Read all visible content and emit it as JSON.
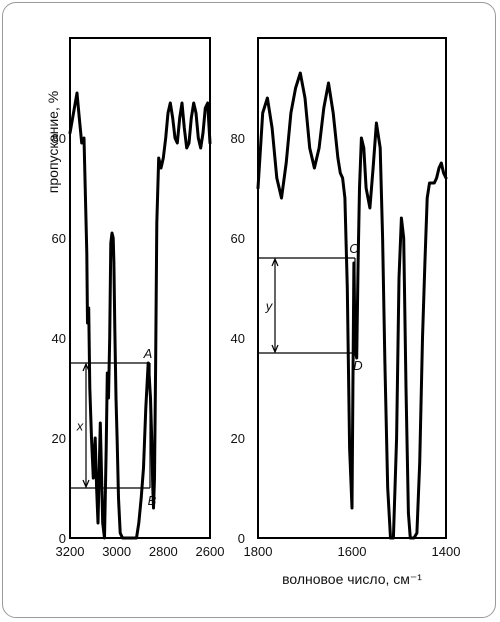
{
  "chart_data": [
    {
      "type": "line",
      "panel": "left",
      "x_reversed": true,
      "xlim": [
        3200,
        2600
      ],
      "ylim": [
        0,
        100
      ],
      "x_ticks": [
        3200,
        3000,
        2800,
        2600
      ],
      "x_tick_labels": [
        "3200",
        "3000",
        "2800",
        "2600"
      ],
      "y_ticks": [
        0,
        20,
        40,
        60,
        80
      ],
      "y_tick_labels": [
        "0",
        "20",
        "40",
        "60",
        "80"
      ],
      "ylabel": "пропускание, %",
      "series": [
        {
          "x": [
            3200,
            3185,
            3170,
            3160,
            3150,
            3140,
            3128,
            3125,
            3120,
            3115,
            3108,
            3100,
            3092,
            3086,
            3080,
            3070,
            3060,
            3052,
            3045,
            3040,
            3035,
            3030,
            3025,
            3020,
            3015,
            3012,
            3008,
            3003,
            2998,
            2992,
            2985,
            2975,
            2965,
            2955,
            2945,
            2935,
            2925,
            2915,
            2905,
            2895,
            2885,
            2875,
            2865,
            2860,
            2855,
            2850,
            2845,
            2842,
            2838,
            2833,
            2828,
            2820,
            2810,
            2800,
            2790,
            2780,
            2770,
            2760,
            2750,
            2740,
            2730,
            2720,
            2710,
            2700,
            2690,
            2680,
            2670,
            2660,
            2650,
            2640,
            2630,
            2620,
            2610,
            2605,
            2600
          ],
          "y": [
            81,
            85,
            89,
            84,
            79,
            80,
            57,
            43,
            46,
            30,
            20,
            12,
            20,
            10,
            3,
            23,
            3,
            0,
            18,
            33,
            28,
            40,
            59,
            61,
            60,
            55,
            42,
            28,
            20,
            8,
            1,
            0,
            0,
            0,
            0,
            0,
            0,
            0,
            3,
            8,
            14,
            26,
            35,
            32,
            28,
            20,
            10,
            6,
            12,
            34,
            63,
            76,
            74,
            76,
            80,
            85,
            87,
            84,
            80,
            79,
            84,
            87,
            82,
            78,
            79,
            84,
            87,
            85,
            80,
            78,
            81,
            86,
            87,
            83,
            79
          ]
        }
      ],
      "annotations": [
        {
          "label": "A",
          "y": 35
        },
        {
          "label": "B",
          "y": 10
        },
        {
          "label": "x",
          "from_y": 10,
          "to_y": 35,
          "at_x": 3110
        }
      ]
    },
    {
      "type": "line",
      "panel": "right",
      "x_reversed": true,
      "xlim": [
        1800,
        1400
      ],
      "ylim": [
        0,
        100
      ],
      "x_ticks": [
        1800,
        1600,
        1400
      ],
      "x_tick_labels": [
        "1800",
        "1600",
        "1400"
      ],
      "y_ticks": [
        0,
        20,
        40,
        60,
        80
      ],
      "y_tick_labels": [
        "0",
        "20",
        "40",
        "60",
        "80"
      ],
      "xlabel": "волновое число, см⁻¹",
      "series": [
        {
          "x": [
            1800,
            1790,
            1780,
            1770,
            1760,
            1750,
            1740,
            1730,
            1720,
            1710,
            1700,
            1690,
            1680,
            1670,
            1660,
            1650,
            1640,
            1630,
            1625,
            1620,
            1615,
            1610,
            1605,
            1600,
            1598,
            1596,
            1594,
            1592,
            1590,
            1587,
            1584,
            1580,
            1575,
            1570,
            1562,
            1555,
            1548,
            1540,
            1535,
            1530,
            1524,
            1518,
            1512,
            1505,
            1500,
            1495,
            1490,
            1485,
            1480,
            1476,
            1472,
            1468,
            1462,
            1456,
            1450,
            1445,
            1440,
            1435,
            1430,
            1425,
            1420,
            1415,
            1410,
            1405,
            1400
          ],
          "y": [
            70,
            85,
            88,
            82,
            72,
            68,
            75,
            85,
            90,
            93,
            88,
            78,
            74,
            78,
            86,
            91,
            85,
            76,
            73,
            72,
            68,
            50,
            18,
            6,
            30,
            55,
            42,
            37,
            36,
            55,
            70,
            80,
            78,
            70,
            66,
            74,
            83,
            78,
            60,
            35,
            10,
            0,
            0,
            20,
            52,
            64,
            60,
            30,
            5,
            0,
            0,
            0,
            1,
            15,
            40,
            55,
            68,
            71,
            71,
            71,
            72,
            74,
            75,
            73,
            72
          ]
        }
      ],
      "annotations": [
        {
          "label": "C",
          "y": 56
        },
        {
          "label": "D",
          "y": 37
        },
        {
          "label": "y",
          "from_y": 37,
          "to_y": 56,
          "at_x": 1764
        }
      ]
    }
  ]
}
